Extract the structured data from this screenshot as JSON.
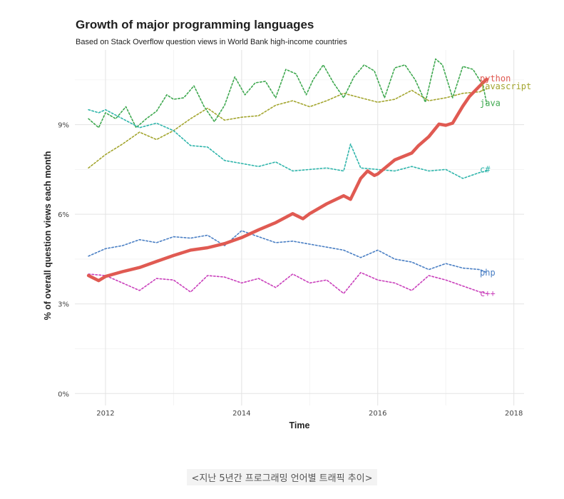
{
  "chart_data": {
    "type": "line",
    "title": "Growth of major programming languages",
    "subtitle": "Based on Stack Overflow question views in World Bank high-income countries",
    "xlabel": "Time",
    "ylabel": "% of overall question views each month",
    "xlim": [
      2011.55,
      2018.15
    ],
    "ylim": [
      -0.4,
      11.5
    ],
    "x_ticks": [
      2012,
      2014,
      2016,
      2018
    ],
    "x_tick_labels": [
      "2012",
      "2014",
      "2016",
      "2018"
    ],
    "y_ticks": [
      0,
      3,
      6,
      9
    ],
    "y_tick_labels": [
      "0%",
      "3%",
      "6%",
      "9%"
    ],
    "grid": true,
    "legend": "direct labels at right end of lines",
    "series": [
      {
        "name": "python",
        "color": "#e05a52",
        "style": "solid",
        "x": [
          2011.75,
          2011.9,
          2012.0,
          2012.25,
          2012.5,
          2012.75,
          2013.0,
          2013.25,
          2013.5,
          2013.75,
          2014.0,
          2014.25,
          2014.5,
          2014.75,
          2014.9,
          2015.0,
          2015.25,
          2015.5,
          2015.6,
          2015.75,
          2015.85,
          2015.95,
          2016.0,
          2016.25,
          2016.5,
          2016.6,
          2016.75,
          2016.9,
          2017.0,
          2017.1,
          2017.25,
          2017.35,
          2017.5,
          2017.6
        ],
        "y": [
          3.95,
          3.78,
          3.92,
          4.08,
          4.22,
          4.42,
          4.62,
          4.8,
          4.88,
          5.02,
          5.22,
          5.48,
          5.72,
          6.02,
          5.85,
          6.02,
          6.35,
          6.62,
          6.5,
          7.2,
          7.45,
          7.3,
          7.35,
          7.82,
          8.05,
          8.3,
          8.6,
          9.02,
          8.98,
          9.05,
          9.62,
          9.95,
          10.3,
          10.52
        ]
      },
      {
        "name": "javascript",
        "color": "#a3a52e",
        "style": "dotted",
        "x": [
          2011.75,
          2012.0,
          2012.25,
          2012.5,
          2012.75,
          2013.0,
          2013.25,
          2013.5,
          2013.75,
          2014.0,
          2014.25,
          2014.5,
          2014.75,
          2015.0,
          2015.25,
          2015.5,
          2015.75,
          2016.0,
          2016.25,
          2016.5,
          2016.75,
          2017.0,
          2017.25,
          2017.5,
          2017.6
        ],
        "y": [
          7.55,
          8.0,
          8.35,
          8.75,
          8.5,
          8.8,
          9.2,
          9.55,
          9.15,
          9.25,
          9.3,
          9.65,
          9.8,
          9.6,
          9.8,
          10.05,
          9.9,
          9.75,
          9.85,
          10.15,
          9.8,
          9.9,
          10.05,
          10.1,
          10.2
        ]
      },
      {
        "name": "java",
        "color": "#3ea84f",
        "style": "dotted",
        "x": [
          2011.75,
          2011.9,
          2012.0,
          2012.15,
          2012.3,
          2012.45,
          2012.6,
          2012.75,
          2012.9,
          2013.0,
          2013.15,
          2013.3,
          2013.45,
          2013.6,
          2013.75,
          2013.9,
          2014.05,
          2014.2,
          2014.35,
          2014.5,
          2014.65,
          2014.8,
          2014.95,
          2015.05,
          2015.2,
          2015.35,
          2015.5,
          2015.65,
          2015.8,
          2015.95,
          2016.1,
          2016.25,
          2016.4,
          2016.55,
          2016.7,
          2016.85,
          2016.95,
          2017.1,
          2017.25,
          2017.4,
          2017.55,
          2017.6
        ],
        "y": [
          9.2,
          8.9,
          9.4,
          9.2,
          9.6,
          8.9,
          9.2,
          9.45,
          10.0,
          9.85,
          9.9,
          10.3,
          9.6,
          9.1,
          9.65,
          10.6,
          10.0,
          10.4,
          10.45,
          9.9,
          10.85,
          10.7,
          10.0,
          10.5,
          11.0,
          10.4,
          9.9,
          10.6,
          11.0,
          10.8,
          9.9,
          10.9,
          11.0,
          10.5,
          9.75,
          11.2,
          11.0,
          9.9,
          10.95,
          10.85,
          10.3,
          9.7
        ]
      },
      {
        "name": "c#",
        "color": "#2fb5ab",
        "style": "dotted",
        "x": [
          2011.75,
          2011.9,
          2012.0,
          2012.25,
          2012.5,
          2012.75,
          2013.0,
          2013.25,
          2013.5,
          2013.75,
          2014.0,
          2014.25,
          2014.5,
          2014.75,
          2015.0,
          2015.25,
          2015.5,
          2015.6,
          2015.75,
          2016.0,
          2016.25,
          2016.5,
          2016.75,
          2017.0,
          2017.25,
          2017.5,
          2017.6
        ],
        "y": [
          9.5,
          9.4,
          9.5,
          9.2,
          8.9,
          9.05,
          8.8,
          8.3,
          8.25,
          7.8,
          7.7,
          7.6,
          7.75,
          7.45,
          7.5,
          7.55,
          7.45,
          8.35,
          7.55,
          7.5,
          7.45,
          7.6,
          7.45,
          7.5,
          7.2,
          7.4,
          7.45
        ]
      },
      {
        "name": "php",
        "color": "#4a7fc4",
        "style": "dotted",
        "x": [
          2011.75,
          2012.0,
          2012.25,
          2012.5,
          2012.75,
          2013.0,
          2013.25,
          2013.5,
          2013.75,
          2014.0,
          2014.25,
          2014.5,
          2014.75,
          2015.0,
          2015.25,
          2015.5,
          2015.75,
          2016.0,
          2016.25,
          2016.5,
          2016.75,
          2017.0,
          2017.25,
          2017.5,
          2017.6
        ],
        "y": [
          4.6,
          4.85,
          4.95,
          5.15,
          5.05,
          5.25,
          5.2,
          5.3,
          4.95,
          5.45,
          5.25,
          5.05,
          5.1,
          5.0,
          4.9,
          4.8,
          4.55,
          4.8,
          4.5,
          4.4,
          4.15,
          4.35,
          4.2,
          4.15,
          4.05
        ]
      },
      {
        "name": "c++",
        "color": "#c93fbb",
        "style": "dotted",
        "x": [
          2011.75,
          2012.0,
          2012.25,
          2012.5,
          2012.75,
          2013.0,
          2013.25,
          2013.5,
          2013.75,
          2014.0,
          2014.25,
          2014.5,
          2014.75,
          2015.0,
          2015.25,
          2015.5,
          2015.75,
          2016.0,
          2016.25,
          2016.5,
          2016.75,
          2017.0,
          2017.25,
          2017.5,
          2017.6
        ],
        "y": [
          4.0,
          3.95,
          3.7,
          3.45,
          3.85,
          3.8,
          3.4,
          3.95,
          3.9,
          3.7,
          3.85,
          3.55,
          4.0,
          3.7,
          3.8,
          3.35,
          4.05,
          3.8,
          3.7,
          3.45,
          3.95,
          3.8,
          3.6,
          3.4,
          3.35
        ]
      }
    ],
    "end_labels": [
      {
        "series": "python",
        "text": "python",
        "y": 10.55
      },
      {
        "series": "javascript",
        "text": "javascript",
        "y": 10.28
      },
      {
        "series": "java",
        "text": "java",
        "y": 9.72
      },
      {
        "series": "c#",
        "text": "c#",
        "y": 7.5
      },
      {
        "series": "php",
        "text": "php",
        "y": 4.05
      },
      {
        "series": "c++",
        "text": "c++",
        "y": 3.35
      }
    ]
  },
  "caption": "<지난 5년간 프로그래밍 언어별 트래픽 추이>"
}
